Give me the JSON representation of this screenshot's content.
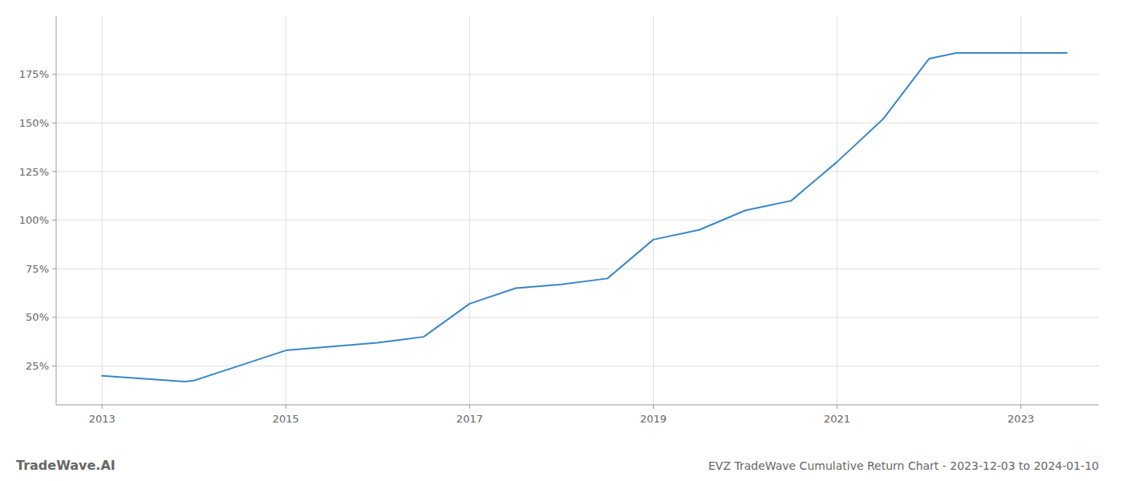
{
  "chart_data": {
    "type": "line",
    "title": "EVZ TradeWave Cumulative Return Chart - 2023-12-03 to 2024-01-10",
    "annotations": [
      "TradeWave.AI"
    ],
    "x": [
      2013.0,
      2013.9,
      2014.0,
      2015.0,
      2015.5,
      2016.0,
      2016.5,
      2017.0,
      2017.5,
      2018.0,
      2018.5,
      2019.0,
      2019.5,
      2020.0,
      2020.5,
      2021.0,
      2021.5,
      2022.0,
      2022.3,
      2022.5,
      2023.0,
      2023.5
    ],
    "values": [
      20,
      17,
      17.5,
      33,
      35,
      37,
      40,
      57,
      65,
      67,
      70,
      90,
      95,
      105,
      110,
      130,
      152,
      183,
      186,
      186,
      186,
      186
    ],
    "color": "#3a87c8",
    "xlim": [
      2012.5,
      2023.85
    ],
    "ylim": [
      5,
      205
    ],
    "xticks": [
      2013,
      2015,
      2017,
      2019,
      2021,
      2023
    ],
    "yticks": [
      {
        "value": 25,
        "label": "25%"
      },
      {
        "value": 50,
        "label": "50%"
      },
      {
        "value": 75,
        "label": "75%"
      },
      {
        "value": 100,
        "label": "100%"
      },
      {
        "value": 125,
        "label": "125%"
      },
      {
        "value": 150,
        "label": "150%"
      },
      {
        "value": 175,
        "label": "175%"
      }
    ],
    "grid": true
  }
}
